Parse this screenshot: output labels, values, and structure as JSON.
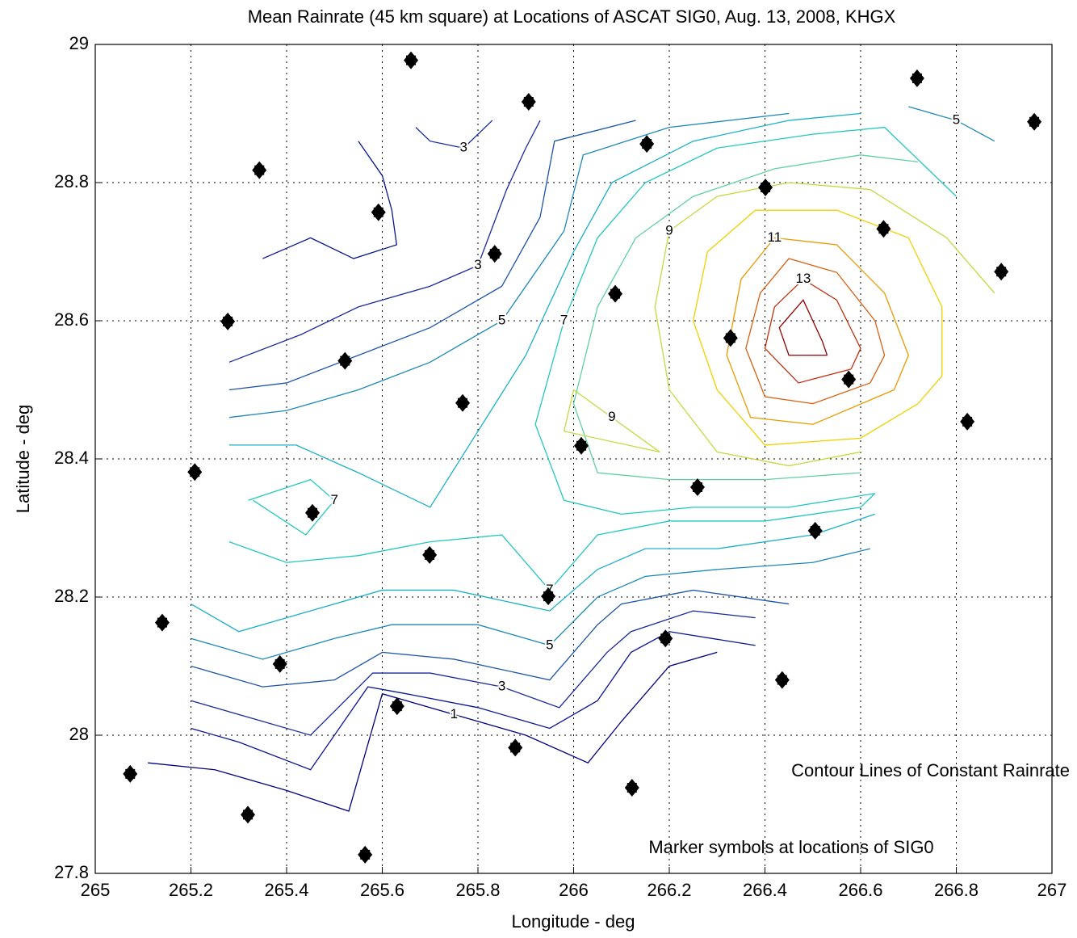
{
  "chart_data": {
    "type": "contour",
    "title": "Mean Rainrate (45 km square) at Locations of ASCAT SIG0, Aug. 13, 2008, KHGX",
    "xlabel": "Longitude - deg",
    "ylabel": "Latitude - deg",
    "annotations": [
      "Contour Lines of Constant Rainrate",
      "Marker symbols at locations of SIG0"
    ],
    "xlim": [
      265,
      267
    ],
    "ylim": [
      27.8,
      29
    ],
    "xticks": [
      265,
      265.2,
      265.4,
      265.6,
      265.8,
      266,
      266.2,
      266.4,
      266.6,
      266.8,
      267
    ],
    "yticks": [
      27.8,
      28,
      28.2,
      28.4,
      28.6,
      28.8,
      29
    ],
    "grid": true,
    "contours": [
      {
        "level": 1,
        "color": "#00007f",
        "x": [
          265.11,
          265.25,
          265.4,
          265.53,
          265.6,
          265.75,
          265.9,
          266.03,
          266.1,
          266.2,
          266.3
        ],
        "y": [
          27.96,
          27.95,
          27.92,
          27.89,
          28.06,
          28.03,
          28.0,
          27.96,
          28.02,
          28.1,
          28.12
        ]
      },
      {
        "level": 2,
        "color": "#0a1490",
        "x": [
          265.2,
          265.3,
          265.45,
          265.57,
          265.65,
          265.8,
          265.95,
          266.05,
          266.12,
          266.2,
          266.38
        ],
        "y": [
          28.01,
          27.99,
          27.95,
          28.07,
          28.06,
          28.04,
          28.01,
          28.05,
          28.12,
          28.15,
          28.13
        ]
      },
      {
        "level": 3,
        "color": "#1a2a9c",
        "x": [
          265.2,
          265.3,
          265.45,
          265.58,
          265.7,
          265.85,
          265.97,
          266.07,
          266.12,
          266.25,
          266.38
        ],
        "y": [
          28.05,
          28.03,
          28.0,
          28.09,
          28.09,
          28.07,
          28.04,
          28.12,
          28.15,
          28.18,
          28.17
        ]
      },
      {
        "level": 4,
        "color": "#1f55a8",
        "x": [
          265.2,
          265.35,
          265.5,
          265.6,
          265.75,
          265.95,
          266.05,
          266.1,
          266.25,
          266.45
        ],
        "y": [
          28.1,
          28.07,
          28.08,
          28.12,
          28.11,
          28.08,
          28.16,
          28.19,
          28.21,
          28.19
        ]
      },
      {
        "level": 5,
        "color": "#1e88b8",
        "x": [
          265.2,
          265.35,
          265.5,
          265.62,
          265.8,
          265.95,
          266.05,
          266.15,
          266.3,
          266.5,
          266.62
        ],
        "y": [
          28.14,
          28.11,
          28.14,
          28.16,
          28.16,
          28.13,
          28.2,
          28.23,
          28.24,
          28.25,
          28.27
        ]
      },
      {
        "level": 6,
        "color": "#19b0c8",
        "x": [
          265.2,
          265.3,
          265.45,
          265.6,
          265.75,
          265.95,
          266.05,
          266.15,
          266.3,
          266.5,
          266.63
        ],
        "y": [
          28.19,
          28.15,
          28.18,
          28.21,
          28.21,
          28.18,
          28.24,
          28.27,
          28.27,
          28.29,
          28.32
        ]
      },
      {
        "level": 7,
        "color": "#22c8c0",
        "x": [
          265.28,
          265.4,
          265.55,
          265.7,
          265.85,
          265.95,
          266.05,
          266.2,
          266.4,
          266.6,
          266.63
        ],
        "y": [
          28.28,
          28.25,
          28.26,
          28.28,
          28.29,
          28.21,
          28.29,
          28.31,
          28.31,
          28.33,
          28.35
        ]
      },
      {
        "level": 7,
        "color": "#22c8c0",
        "x": [
          265.32,
          265.45,
          265.5,
          265.44,
          265.33
        ],
        "y": [
          28.34,
          28.37,
          28.34,
          28.29,
          28.34
        ]
      },
      {
        "level": 2,
        "color": "#0a1490",
        "x": [
          265.35,
          265.45,
          265.54,
          265.63,
          265.62,
          265.6,
          265.55
        ],
        "y": [
          28.69,
          28.72,
          28.69,
          28.71,
          28.76,
          28.81,
          28.86
        ]
      },
      {
        "level": 3,
        "color": "#1a2a9c",
        "x": [
          265.28,
          265.43,
          265.55,
          265.7,
          265.8,
          265.86,
          265.9,
          265.93
        ],
        "y": [
          28.54,
          28.58,
          28.62,
          28.65,
          28.68,
          28.79,
          28.85,
          28.89
        ]
      },
      {
        "level": 3,
        "color": "#1a2a9c",
        "x": [
          265.67,
          265.7,
          265.77,
          265.83
        ],
        "y": [
          28.88,
          28.86,
          28.85,
          28.89
        ]
      },
      {
        "level": 4,
        "color": "#1f55a8",
        "x": [
          265.28,
          265.4,
          265.55,
          265.7,
          265.85,
          265.93,
          265.96,
          266.13
        ],
        "y": [
          28.5,
          28.51,
          28.55,
          28.59,
          28.65,
          28.75,
          28.86,
          28.89
        ]
      },
      {
        "level": 5,
        "color": "#1e88b8",
        "x": [
          265.28,
          265.4,
          265.55,
          265.7,
          265.85,
          265.98,
          266.02,
          266.2,
          266.45
        ],
        "y": [
          28.46,
          28.47,
          28.5,
          28.54,
          28.6,
          28.73,
          28.84,
          28.88,
          28.9
        ]
      },
      {
        "level": 5,
        "color": "#1e88b8",
        "x": [
          266.7,
          266.8,
          266.88
        ],
        "y": [
          28.91,
          28.89,
          28.86
        ]
      },
      {
        "level": 6,
        "color": "#19b0c8",
        "x": [
          265.28,
          265.42,
          265.55,
          265.7,
          265.9,
          266.0,
          266.08,
          266.25,
          266.45,
          266.6
        ],
        "y": [
          28.42,
          28.42,
          28.38,
          28.33,
          28.55,
          28.7,
          28.8,
          28.86,
          28.89,
          28.9
        ]
      },
      {
        "level": 7,
        "color": "#22c8c0",
        "x": [
          266.63,
          266.45,
          266.25,
          266.1,
          265.98,
          265.92,
          265.98,
          266.05,
          266.15,
          266.3,
          266.5,
          266.65,
          266.8
        ],
        "y": [
          28.35,
          28.33,
          28.33,
          28.32,
          28.34,
          28.45,
          28.6,
          28.72,
          28.8,
          28.85,
          28.87,
          28.88,
          28.78
        ]
      },
      {
        "level": 8,
        "color": "#60d0a0",
        "x": [
          266.6,
          266.4,
          266.2,
          266.05,
          266.0,
          266.05,
          266.13,
          266.25,
          266.42,
          266.6,
          266.72
        ],
        "y": [
          28.38,
          28.37,
          28.37,
          28.38,
          28.48,
          28.62,
          28.72,
          28.78,
          28.82,
          28.84,
          28.83
        ]
      },
      {
        "level": 9,
        "color": "#c8d840",
        "x": [
          266.6,
          266.45,
          266.3,
          266.2,
          266.17,
          266.2,
          266.3,
          266.45,
          266.62,
          266.78,
          266.88
        ],
        "y": [
          28.41,
          28.39,
          28.41,
          28.5,
          28.62,
          28.73,
          28.78,
          28.8,
          28.79,
          28.72,
          28.64
        ]
      },
      {
        "level": 9,
        "color": "#c8d840",
        "x": [
          265.98,
          266.0,
          266.08,
          266.18,
          265.98
        ],
        "y": [
          28.44,
          28.5,
          28.46,
          28.41,
          28.44
        ]
      },
      {
        "level": 10,
        "color": "#f0d000",
        "x": [
          266.72,
          266.6,
          266.4,
          266.3,
          266.25,
          266.28,
          266.38,
          266.55,
          266.7,
          266.77,
          266.77,
          266.72
        ],
        "y": [
          28.48,
          28.43,
          28.42,
          28.5,
          28.6,
          28.7,
          28.76,
          28.76,
          28.72,
          28.62,
          28.52,
          28.48
        ]
      },
      {
        "level": 11,
        "color": "#e89a00",
        "x": [
          266.67,
          266.5,
          266.37,
          266.32,
          266.35,
          266.42,
          266.55,
          266.65,
          266.7,
          266.67
        ],
        "y": [
          28.5,
          28.45,
          28.46,
          28.55,
          28.66,
          28.72,
          28.71,
          28.64,
          28.55,
          28.5
        ]
      },
      {
        "level": 12,
        "color": "#d86010",
        "x": [
          266.62,
          266.5,
          266.4,
          266.36,
          266.39,
          266.45,
          266.55,
          266.63,
          266.65,
          266.62
        ],
        "y": [
          28.51,
          28.48,
          28.49,
          28.56,
          28.64,
          28.69,
          28.67,
          28.6,
          28.55,
          28.51
        ]
      },
      {
        "level": 13,
        "color": "#c03010",
        "x": [
          266.58,
          266.47,
          266.4,
          266.42,
          266.48,
          266.55,
          266.6,
          266.58
        ],
        "y": [
          28.53,
          28.51,
          28.56,
          28.62,
          28.66,
          28.63,
          28.56,
          28.53
        ]
      },
      {
        "level": 14,
        "color": "#900000",
        "x": [
          266.53,
          266.45,
          266.43,
          266.48,
          266.52,
          266.53
        ],
        "y": [
          28.55,
          28.55,
          28.59,
          28.63,
          28.57,
          28.55
        ]
      }
    ],
    "markers": {
      "color": "#000000",
      "x": [
        265.66,
        265.906,
        266.718,
        266.963,
        265.343,
        265.592,
        266.153,
        266.401,
        266.648,
        265.835,
        266.894,
        265.277,
        266.087,
        266.328,
        265.522,
        266.575,
        265.768,
        266.016,
        266.823,
        265.208,
        266.259,
        265.454,
        266.505,
        265.699,
        265.947,
        265.14,
        266.192,
        265.386,
        266.436,
        265.631,
        265.878,
        265.073,
        266.122,
        265.319,
        265.564
      ],
      "y": [
        28.977,
        28.917,
        28.951,
        28.888,
        28.818,
        28.757,
        28.856,
        28.793,
        28.733,
        28.697,
        28.671,
        28.599,
        28.639,
        28.575,
        28.542,
        28.515,
        28.481,
        28.419,
        28.454,
        28.381,
        28.359,
        28.322,
        28.296,
        28.261,
        28.201,
        28.163,
        28.14,
        28.103,
        28.08,
        28.042,
        27.982,
        27.944,
        27.924,
        27.885,
        27.827
      ]
    }
  }
}
